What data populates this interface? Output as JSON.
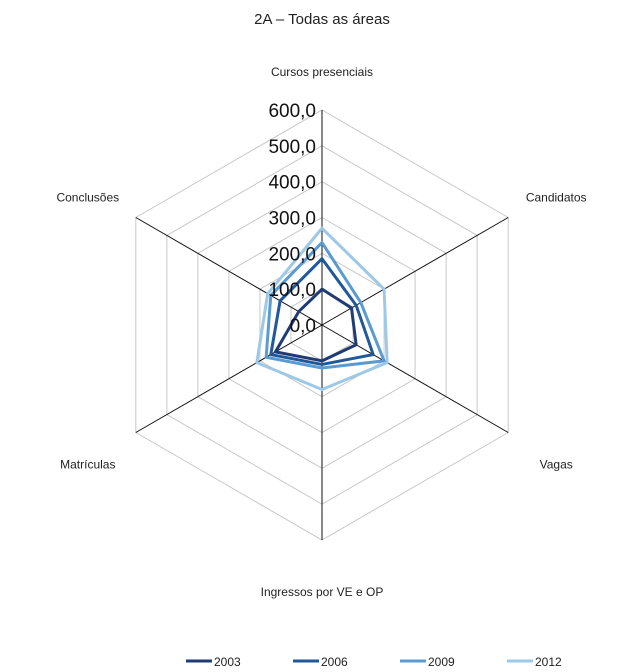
{
  "chart_data": {
    "type": "radar",
    "title": "2A – Todas as áreas",
    "axes": [
      "Cursos presenciais",
      "Candidatos",
      "Vagas",
      "Ingressos por VE e OP",
      "Matrículas",
      "Conclusões"
    ],
    "rlim": [
      0,
      600
    ],
    "ticks": [
      "0,0",
      "100,0",
      "200,0",
      "300,0",
      "400,0",
      "500,0",
      "600,0"
    ],
    "grid": true,
    "legend_position": "bottom",
    "series": [
      {
        "name": "2003",
        "color": "#1f3a74",
        "values": [
          100,
          95,
          110,
          100,
          150,
          75
        ]
      },
      {
        "name": "2006",
        "color": "#20589a",
        "values": [
          185,
          110,
          165,
          110,
          165,
          135
        ]
      },
      {
        "name": "2009",
        "color": "#5b9bd2",
        "values": [
          230,
          125,
          200,
          120,
          180,
          165
        ]
      },
      {
        "name": "2012",
        "color": "#9dc9e6",
        "values": [
          270,
          200,
          210,
          180,
          210,
          175
        ]
      }
    ]
  }
}
